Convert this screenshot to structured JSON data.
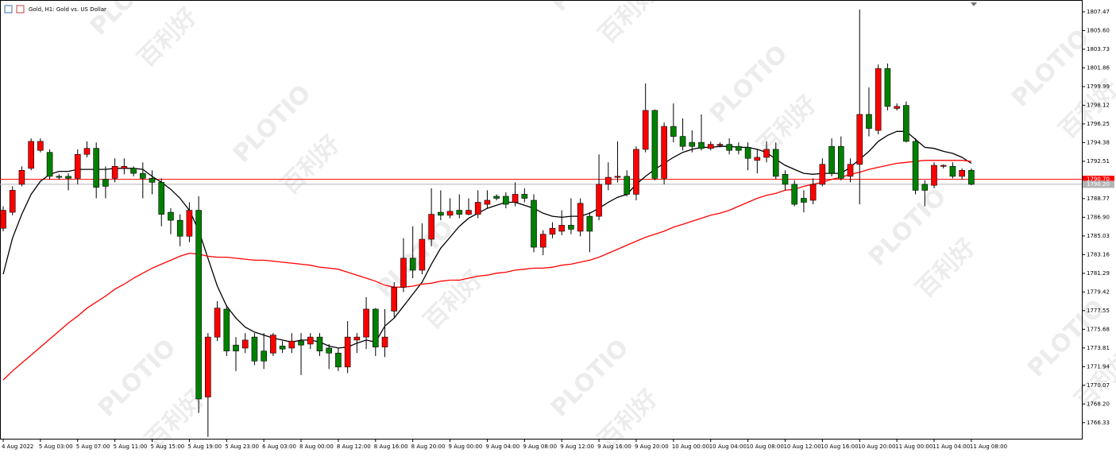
{
  "chart_data": {
    "type": "candlestick",
    "title": "Gold, H1:  Gold vs. US Dollar",
    "watermark": [
      "PLOTIO",
      "百利好"
    ],
    "categories": [
      "4 Aug 2022",
      null,
      null,
      null,
      "5 Aug 03:00",
      null,
      null,
      null,
      "5 Aug 07:00",
      null,
      null,
      null,
      "5 Aug 11:00",
      null,
      null,
      null,
      "5 Aug 15:00",
      null,
      null,
      null,
      "5 Aug 19:00",
      null,
      null,
      null,
      "5 Aug 23:00",
      null,
      null,
      null,
      "6 Aug 03:00",
      null,
      null,
      null,
      "8 Aug 00:00",
      null,
      null,
      null,
      "8 Aug 12:00",
      null,
      null,
      null,
      "8 Aug 16:00",
      null,
      null,
      null,
      "8 Aug 20:00",
      null,
      null,
      null,
      "9 Aug 00:00",
      null,
      null,
      null,
      "9 Aug 04:00",
      null,
      null,
      null,
      "9 Aug 08:00",
      null,
      null,
      null,
      "9 Aug 12:00",
      null,
      null,
      null,
      "9 Aug 16:00",
      null,
      null,
      null,
      "9 Aug 20:00",
      null,
      null,
      null,
      "10 Aug 00:00",
      null,
      null,
      null,
      "10 Aug 04:00",
      null,
      null,
      null,
      "10 Aug 08:00",
      null,
      null,
      null,
      "10 Aug 12:00",
      null,
      null,
      null,
      "10 Aug 16:00",
      null,
      null,
      null,
      "10 Aug 20:00",
      null,
      null,
      null,
      "11 Aug 00:00",
      null,
      null,
      null,
      "11 Aug 04:00",
      null,
      null,
      null,
      "11 Aug 08:00"
    ],
    "open": [
      1785.8,
      1787.4,
      1790.2,
      1791.8,
      1793.6,
      1793.4,
      1791.0,
      1791.0,
      1790.8,
      1793.2,
      1793.8,
      1790.7,
      1790.8,
      1791.8,
      1791.8,
      1791.3,
      1790.8,
      1790.4,
      1787.4,
      1786.6,
      1785.0,
      1787.6,
      1768.9,
      1774.9,
      1777.7,
      1774.1,
      1773.8,
      1774.9,
      1773.5,
      1773.3,
      1774.0,
      1773.8,
      1774.5,
      1774.2,
      1774.9,
      1773.8,
      1773.3,
      1771.9,
      1774.6,
      1774.9,
      1777.7,
      1773.9,
      1777.5,
      1779.9,
      1782.8,
      1781.6,
      1784.7,
      1787.4,
      1787.1,
      1787.6,
      1787.2,
      1787.2,
      1788.2,
      1789.0,
      1789.0,
      1788.4,
      1789.2,
      1788.6,
      1783.9,
      1785.2,
      1785.5,
      1786.1,
      1785.5,
      1787.0,
      1787.0,
      1790.2,
      1790.9,
      1791.0,
      1789.2,
      1793.7,
      1797.6,
      1790.8,
      1796.0,
      1795.0,
      1794.4,
      1794.4,
      1793.8,
      1794.1,
      1794.2,
      1794.0,
      1793.9,
      1792.6,
      1792.9,
      1793.7,
      1791.2,
      1790.2,
      1788.8,
      1788.6,
      1790.2,
      1794.0,
      1794.0,
      1791.0,
      1792.2,
      1797.2,
      1795.6,
      1801.8,
      1797.8,
      1798.1,
      1794.5,
      1790.2,
      1790.1,
      1792.0,
      1792.0,
      1791.0,
      1791.6
    ],
    "high": [
      1788.0,
      1790.0,
      1792.0,
      1794.8,
      1794.8,
      1793.7,
      1791.2,
      1791.3,
      1793.7,
      1794.5,
      1794.4,
      1792.0,
      1792.8,
      1792.8,
      1792.0,
      1792.4,
      1791.6,
      1790.8,
      1787.8,
      1787.2,
      1788.4,
      1789.0,
      1775.3,
      1778.5,
      1778.1,
      1774.9,
      1775.3,
      1775.3,
      1775.3,
      1775.3,
      1774.5,
      1775.3,
      1775.3,
      1775.3,
      1775.3,
      1774.2,
      1773.8,
      1776.5,
      1775.3,
      1778.9,
      1777.8,
      1777.7,
      1780.4,
      1784.8,
      1786.0,
      1786.3,
      1789.8,
      1789.6,
      1788.8,
      1789.2,
      1788.8,
      1789.6,
      1789.6,
      1789.2,
      1789.4,
      1790.4,
      1789.8,
      1789.2,
      1785.6,
      1786.4,
      1787.6,
      1788.8,
      1788.8,
      1787.4,
      1793.2,
      1792.4,
      1794.5,
      1791.6,
      1794.0,
      1800.3,
      1797.7,
      1796.4,
      1798.3,
      1796.8,
      1795.6,
      1797.2,
      1794.5,
      1794.4,
      1794.8,
      1794.4,
      1794.4,
      1793.7,
      1794.5,
      1794.4,
      1791.6,
      1790.6,
      1789.6,
      1790.8,
      1792.8,
      1794.8,
      1795.0,
      1792.8,
      1807.7,
      1799.9,
      1802.2,
      1802.3,
      1798.3,
      1798.5,
      1794.8,
      1790.6,
      1792.4,
      1792.2,
      1792.4,
      1791.8,
      1791.8
    ],
    "low": [
      1785.5,
      1787.1,
      1790.0,
      1791.6,
      1793.4,
      1790.7,
      1790.7,
      1789.6,
      1790.2,
      1792.9,
      1788.8,
      1788.8,
      1790.4,
      1791.2,
      1791.0,
      1788.8,
      1789.2,
      1786.0,
      1785.2,
      1784.0,
      1784.4,
      1767.3,
      1764.9,
      1774.5,
      1773.0,
      1771.5,
      1773.3,
      1772.1,
      1771.7,
      1773.0,
      1773.3,
      1773.3,
      1771.1,
      1773.7,
      1773.0,
      1771.7,
      1771.5,
      1771.3,
      1773.3,
      1773.7,
      1773.0,
      1772.9,
      1776.9,
      1779.4,
      1780.8,
      1781.2,
      1784.0,
      1786.6,
      1786.8,
      1786.8,
      1787.1,
      1786.8,
      1787.8,
      1788.6,
      1787.8,
      1788.0,
      1788.4,
      1783.4,
      1783.1,
      1784.8,
      1785.1,
      1785.2,
      1785.0,
      1783.4,
      1786.6,
      1789.6,
      1790.4,
      1789.0,
      1788.6,
      1793.4,
      1790.6,
      1790.2,
      1794.4,
      1793.6,
      1793.4,
      1793.6,
      1793.6,
      1793.9,
      1793.2,
      1793.2,
      1791.6,
      1791.3,
      1792.4,
      1790.7,
      1789.6,
      1788.0,
      1787.4,
      1788.2,
      1790.0,
      1791.0,
      1790.6,
      1790.4,
      1788.2,
      1795.0,
      1795.2,
      1797.6,
      1797.6,
      1794.4,
      1789.2,
      1788.0,
      1789.8,
      1791.8,
      1790.8,
      1790.7,
      1790.1
    ],
    "close": [
      1787.6,
      1789.6,
      1791.6,
      1794.5,
      1794.5,
      1791.0,
      1790.9,
      1790.8,
      1793.2,
      1793.8,
      1789.9,
      1790.0,
      1792.0,
      1792.0,
      1791.3,
      1790.8,
      1790.4,
      1787.2,
      1786.6,
      1785.0,
      1787.6,
      1768.7,
      1774.9,
      1777.8,
      1773.5,
      1773.5,
      1774.6,
      1772.5,
      1772.5,
      1775.1,
      1773.7,
      1774.5,
      1774.1,
      1774.9,
      1773.5,
      1773.3,
      1771.9,
      1774.9,
      1774.9,
      1777.7,
      1773.9,
      1774.9,
      1779.9,
      1782.8,
      1781.6,
      1784.7,
      1787.2,
      1787.1,
      1787.5,
      1787.2,
      1787.6,
      1788.4,
      1788.6,
      1788.8,
      1788.2,
      1789.2,
      1788.8,
      1783.9,
      1785.2,
      1785.8,
      1786.1,
      1785.7,
      1788.3,
      1785.5,
      1790.2,
      1790.9,
      1791.0,
      1789.2,
      1793.7,
      1797.6,
      1790.8,
      1796.0,
      1795.0,
      1794.0,
      1794.0,
      1793.8,
      1794.2,
      1794.2,
      1793.6,
      1793.6,
      1792.8,
      1792.9,
      1793.7,
      1791.0,
      1790.2,
      1788.2,
      1788.4,
      1790.2,
      1792.2,
      1791.3,
      1790.8,
      1792.2,
      1797.2,
      1795.8,
      1801.8,
      1798.0,
      1798.0,
      1794.5,
      1789.6,
      1789.6,
      1792.1,
      1792.1,
      1791.0,
      1791.6,
      1790.2
    ],
    "up_color": "#ff0000",
    "down_color": "#008000",
    "lines": [
      {
        "color": "#000000",
        "values": [
          1781.2,
          1784.8,
          1787.2,
          1789.2,
          1790.5,
          1791.2,
          1791.5,
          1791.5,
          1791.7,
          1791.7,
          1791.7,
          1791.7,
          1791.8,
          1791.8,
          1791.8,
          1791.7,
          1791.0,
          1790.4,
          1789.7,
          1788.8,
          1787.6,
          1785.6,
          1782.8,
          1780.0,
          1778.0,
          1776.8,
          1775.9,
          1775.4,
          1775.1,
          1774.8,
          1774.6,
          1774.4,
          1774.6,
          1774.6,
          1774.4,
          1774.0,
          1773.8,
          1773.9,
          1774.3,
          1774.6,
          1774.4,
          1776.0,
          1776.8,
          1778.0,
          1779.2,
          1780.4,
          1782.2,
          1783.8,
          1784.9,
          1786.0,
          1786.8,
          1787.3,
          1787.8,
          1788.1,
          1788.4,
          1788.4,
          1788.1,
          1787.8,
          1787.3,
          1787.0,
          1786.9,
          1787.0,
          1787.0,
          1787.3,
          1787.8,
          1788.4,
          1788.9,
          1789.2,
          1790.2,
          1791.0,
          1791.7,
          1792.3,
          1792.9,
          1793.4,
          1793.7,
          1793.9,
          1793.9,
          1794.0,
          1794.0,
          1793.9,
          1793.9,
          1793.7,
          1793.4,
          1792.7,
          1792.1,
          1791.7,
          1791.3,
          1791.2,
          1791.3,
          1791.3,
          1791.3,
          1791.9,
          1792.7,
          1793.5,
          1794.5,
          1795.1,
          1795.5,
          1795.5,
          1794.7,
          1793.9,
          1793.8,
          1793.5,
          1793.3,
          1792.9,
          1792.3
        ]
      },
      {
        "color": "#ff0000",
        "values": [
          1770.6,
          1771.5,
          1772.3,
          1773.1,
          1773.9,
          1774.7,
          1775.5,
          1776.3,
          1777.0,
          1777.8,
          1778.4,
          1779.0,
          1779.7,
          1780.2,
          1780.8,
          1781.3,
          1781.8,
          1782.2,
          1782.6,
          1783.0,
          1783.3,
          1783.2,
          1783.0,
          1782.9,
          1782.9,
          1782.8,
          1782.7,
          1782.6,
          1782.6,
          1782.5,
          1782.4,
          1782.3,
          1782.2,
          1782.1,
          1781.9,
          1781.8,
          1781.7,
          1781.4,
          1781.1,
          1780.8,
          1780.5,
          1780.1,
          1779.9,
          1779.9,
          1780.0,
          1780.2,
          1780.3,
          1780.5,
          1780.6,
          1780.6,
          1780.8,
          1781.0,
          1781.1,
          1781.3,
          1781.4,
          1781.6,
          1781.7,
          1781.8,
          1781.8,
          1781.9,
          1782.1,
          1782.2,
          1782.4,
          1782.6,
          1782.9,
          1783.3,
          1783.7,
          1784.1,
          1784.5,
          1784.9,
          1785.2,
          1785.5,
          1785.9,
          1786.2,
          1786.5,
          1786.8,
          1787.1,
          1787.3,
          1787.6,
          1788.0,
          1788.4,
          1788.8,
          1789.1,
          1789.3,
          1789.6,
          1789.7,
          1790.0,
          1790.2,
          1790.4,
          1790.7,
          1790.9,
          1791.2,
          1791.4,
          1791.7,
          1791.9,
          1792.1,
          1792.3,
          1792.4,
          1792.5,
          1792.6,
          1792.6,
          1792.6,
          1792.6,
          1792.6,
          1792.5
        ]
      }
    ],
    "price_lines": [
      {
        "value": 1790.7,
        "label": "1790.70",
        "color": "#ff0000"
      },
      {
        "value": 1790.2,
        "label": "1790.20",
        "color": "#b4b4b4"
      }
    ],
    "ylim": [
      1764.72,
      1808.66
    ],
    "yticks": [
      1807.47,
      {
        "value": 1805.6,
        "label": "1805.60"
      },
      1803.73,
      1801.86,
      1799.99,
      1798.12,
      1796.25,
      1794.38,
      1792.51,
      1788.77,
      {
        "value": 1786.9,
        "label": "1786.90"
      },
      1785.03,
      1783.16,
      1781.29,
      1779.42,
      1777.55,
      1775.68,
      1773.81,
      1771.94,
      1770.07,
      {
        "value": 1768.2,
        "label": "1768.20"
      },
      1766.33
    ],
    "grid": false
  }
}
